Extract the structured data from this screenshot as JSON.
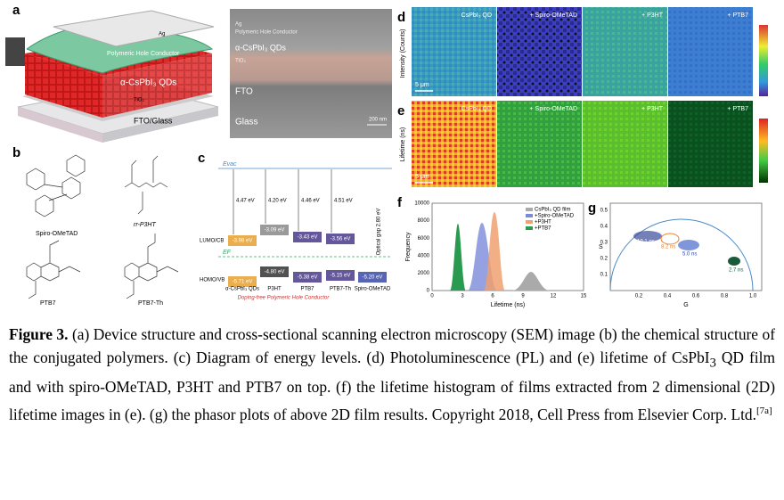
{
  "panels": {
    "a": {
      "label": "a",
      "device": [
        "Ag",
        "Polymeric Hole Conductor",
        "α-CsPbI₃ QDs",
        "TiO₂",
        "FTO/Glass"
      ],
      "sem": [
        "Ag",
        "Polymeric Hole Conductor",
        "α-CsPbI₃ QDs",
        "TiO₂",
        "FTO",
        "Glass",
        "200 nm"
      ]
    },
    "b": {
      "label": "b",
      "names": [
        "Spiro-OMeTAD",
        "rr-P3HT",
        "PTB7",
        "PTB7-Th"
      ]
    },
    "c": {
      "label": "c",
      "evac": "Evac",
      "ef": "EF",
      "lumo": "LUMO/CB",
      "homo": "HOMO/VB",
      "gaps": [
        "4.47 eV",
        "4.20 eV",
        "4.46 eV",
        "4.51 eV"
      ],
      "lumo_values": [
        "-3.98 eV",
        "-3.09 eV",
        "-3.43 eV",
        "-3.56 eV"
      ],
      "homo_values": [
        "-5.71 eV",
        "-4.80 eV",
        "-5.38 eV",
        "-5.15 eV",
        "-5.20 eV"
      ],
      "columns": [
        "α-CsPbI₃ QDs",
        "P3HT",
        "PTB7",
        "PTB7-Th",
        "Spiro-OMeTAD"
      ],
      "optical_gap": "Optical gap 2.80 eV",
      "group": "Doping-free Polymeric Hole Conductor"
    },
    "d": {
      "label": "d",
      "axis": "Intensity (Counts)",
      "maps": [
        "CsPbI₃ QD",
        "+ Spiro-OMeTAD",
        "+ P3HT",
        "+ PTB7"
      ],
      "scale": "5 μm"
    },
    "e": {
      "label": "e",
      "axis": "Lifetime (ns)",
      "maps": [
        "CsPbI₃ QD",
        "+ Spiro-OMeTAD",
        "+ P3HT",
        "+ PTB7"
      ],
      "scale": "5 μm"
    },
    "f": {
      "label": "f",
      "ylabel": "Frequency",
      "xlabel": "Lifetime (ns)",
      "yticks": [
        "0",
        "2000",
        "4000",
        "6000",
        "8000",
        "10000"
      ],
      "xticks": [
        "0",
        "3",
        "6",
        "9",
        "12",
        "15"
      ],
      "legend": [
        "CsPbI₃ QD film",
        "+Spiro-OMeTAD",
        "+P3HT",
        "+PTB7"
      ]
    },
    "g": {
      "label": "g",
      "ylabel": "S",
      "xlabel": "G",
      "yticks": [
        "0.1",
        "0.2",
        "0.3",
        "0.4",
        "0.5"
      ],
      "xticks": [
        "0.2",
        "0.4",
        "0.6",
        "0.8",
        "1.0"
      ],
      "annotations": [
        "10.1 ns",
        "8.2 ns",
        "5.0 ns",
        "2.7 ns"
      ]
    }
  },
  "caption": {
    "label": "Figure 3.",
    "text_1": " (a) Device structure and cross-sectional scanning electron microscopy (SEM) image (b) the chemical structure of the conjugated polymers. (c) Diagram of energy levels. (d) Photoluminescence (PL) and (e) lifetime of CsPbI",
    "sub": "3",
    "text_2": " QD film and with spiro-OMeTAD, P3HT and PTB7 on top. (f) the lifetime histogram of films extracted from 2 dimensional (2D) lifetime images in (e). (g) the phasor plots of above 2D film results. Copyright 2018, Cell Press from Elsevier Corp. Ltd.",
    "ref": "[7a]"
  }
}
